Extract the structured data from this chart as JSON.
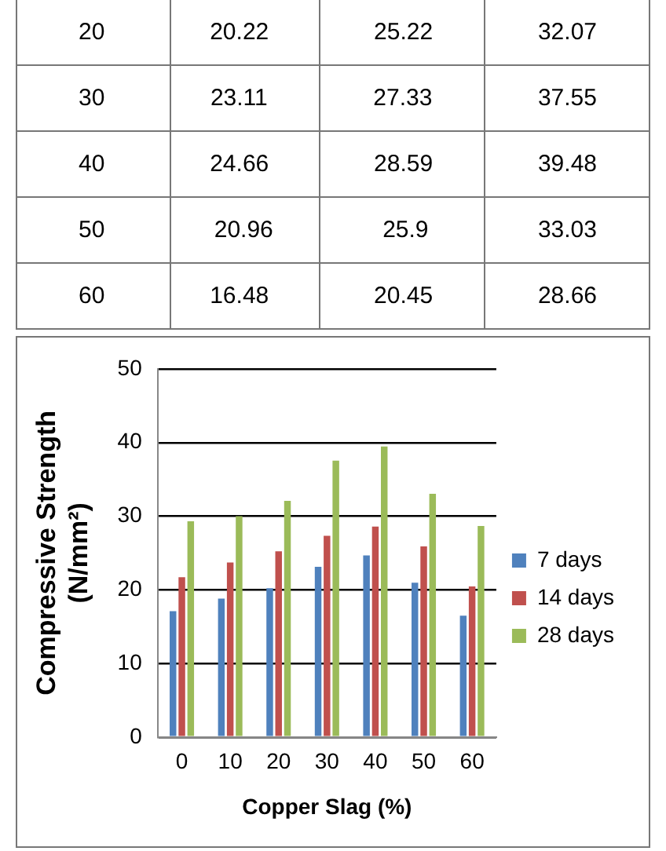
{
  "chart_data": [
    {
      "type": "other",
      "annotations": [
        "20 20.22 25.22 32.07",
        "30 23.11 27.33 37.55",
        "40 24.66 28.59 39.48",
        "50 20.96 25.9 33.03",
        "60 16.48 20.45 28.66"
      ]
    },
    {
      "type": "bar",
      "xlabel": "Copper Slag (%)",
      "ylabel": "Compressive Strength (N/mm²)",
      "categories": [
        "0",
        "10",
        "20",
        "30",
        "40",
        "50",
        "60"
      ],
      "series": [
        {
          "name": "7 days",
          "color": "#4f81bd",
          "values": [
            17.1,
            18.8,
            20.22,
            23.11,
            24.66,
            20.96,
            16.48
          ]
        },
        {
          "name": "14 days",
          "color": "#c0504d",
          "values": [
            21.7,
            23.7,
            25.22,
            27.33,
            28.59,
            25.9,
            20.45
          ]
        },
        {
          "name": "28 days",
          "color": "#9bbb59",
          "values": [
            29.3,
            30.0,
            32.07,
            37.55,
            39.48,
            33.03,
            28.66
          ]
        }
      ],
      "ylim": [
        0,
        50
      ],
      "yticks": [
        0,
        10,
        20,
        30,
        40,
        50
      ],
      "grid": "y",
      "legend": "right"
    }
  ]
}
